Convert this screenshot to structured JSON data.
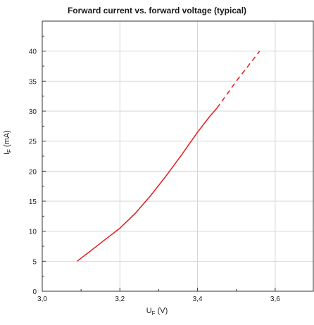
{
  "chart_data": {
    "type": "line",
    "title": "Forward current vs. forward voltage (typical)",
    "xlabel_main": "U",
    "xlabel_sub": "F",
    "xlabel_unit": "(V)",
    "ylabel_main": "I",
    "ylabel_sub": "F",
    "ylabel_unit": "(mA)",
    "xlim": [
      3.0,
      3.7
    ],
    "ylim": [
      0,
      45
    ],
    "xticks": [
      3.0,
      3.2,
      3.4,
      3.6
    ],
    "xtick_labels": [
      "3,0",
      "3,2",
      "3,4",
      "3,6"
    ],
    "yticks": [
      0,
      5,
      10,
      15,
      20,
      25,
      30,
      35,
      40
    ],
    "grid": true,
    "series": [
      {
        "style": "solid",
        "color": "#e31a1c",
        "x": [
          3.09,
          3.13,
          3.17,
          3.2,
          3.24,
          3.28,
          3.32,
          3.36,
          3.4,
          3.43,
          3.45
        ],
        "y": [
          5,
          7,
          9,
          10.5,
          13,
          16,
          19.3,
          22.8,
          26.5,
          29,
          30.5
        ]
      },
      {
        "style": "dashed",
        "color": "#e31a1c",
        "x": [
          3.45,
          3.5,
          3.56
        ],
        "y": [
          30.5,
          35,
          40
        ]
      }
    ]
  }
}
